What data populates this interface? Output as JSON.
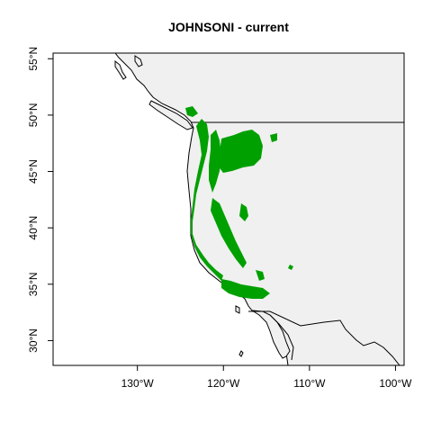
{
  "title": "JOHNSONI - current",
  "axes": {
    "x_ticks": [
      {
        "lon": -130,
        "label": "130°W"
      },
      {
        "lon": -120,
        "label": "120°W"
      },
      {
        "lon": -110,
        "label": "110°W"
      },
      {
        "lon": -100,
        "label": "100°W"
      }
    ],
    "y_ticks": [
      {
        "lat": 30,
        "label": "30°N"
      },
      {
        "lat": 35,
        "label": "35°N"
      },
      {
        "lat": 40,
        "label": "40°N"
      },
      {
        "lat": 45,
        "label": "45°N"
      },
      {
        "lat": 50,
        "label": "50°N"
      },
      {
        "lat": 55,
        "label": "55°N"
      }
    ],
    "lon_range": [
      -139.8,
      -99.0
    ],
    "lat_range": [
      27.8,
      55.5
    ]
  },
  "colors": {
    "land": "#f0f0f0",
    "ocean": "#ffffff",
    "border": "#000000",
    "distribution": "#00a000"
  }
}
